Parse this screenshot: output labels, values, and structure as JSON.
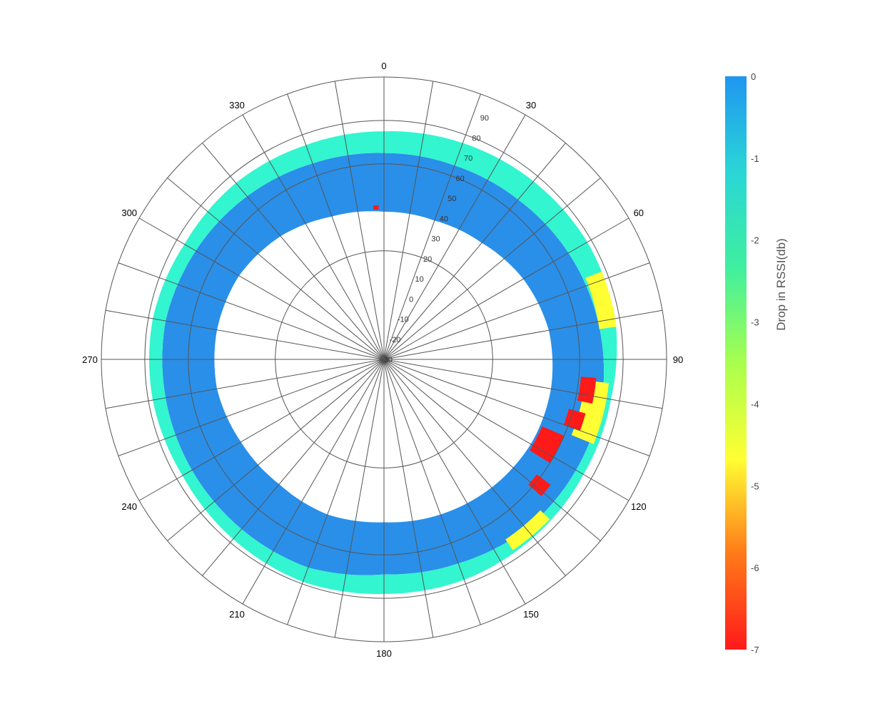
{
  "chart_data": {
    "type": "heatmap",
    "subtype": "polar",
    "title": "",
    "angular_axis": {
      "ticks": [
        0,
        30,
        60,
        90,
        120,
        150,
        180,
        210,
        240,
        270,
        300,
        330
      ],
      "tick_labels": [
        "0",
        "30",
        "60",
        "90",
        "120",
        "150",
        "180",
        "210",
        "240",
        "270",
        "300",
        "330"
      ],
      "spoke_step_deg": 10,
      "direction": "clockwise",
      "zero": "top"
    },
    "radial_axis": {
      "range": [
        -30,
        100
      ],
      "ticks": [
        -30,
        -20,
        -10,
        0,
        10,
        20,
        30,
        40,
        50,
        60,
        70,
        80,
        90
      ],
      "tick_labels": [
        "-30",
        "-20",
        "-10",
        "0",
        "10",
        "20",
        "30",
        "40",
        "50",
        "60",
        "70",
        "80",
        "90"
      ],
      "label_angle_deg": 22,
      "rings": [
        -30,
        20,
        60,
        80,
        100
      ]
    },
    "colorbar": {
      "title": "Drop in RSSI(db)",
      "range": [
        -7,
        0
      ],
      "ticks": [
        0,
        -1,
        -2,
        -3,
        -4,
        -5,
        -6,
        -7
      ],
      "tick_labels": [
        "0",
        "-1",
        "-2",
        "-3",
        "-4",
        "-5",
        "-6",
        "-7"
      ],
      "colorscale": [
        "#ff1a1a",
        "#ff7a1a",
        "#ffff33",
        "#a8ff4d",
        "#3fefa0",
        "#2ad6d6",
        "#1f96f0"
      ]
    },
    "series": [
      {
        "band": "inner_blue",
        "value_db": 0,
        "r_inner": [
          38,
          38,
          40,
          44,
          47,
          48,
          48,
          47,
          46,
          45,
          46,
          45,
          46,
          48,
          48,
          47,
          44,
          40,
          38
        ],
        "r_outer": [
          65,
          65,
          66,
          68,
          70,
          72,
          72,
          72,
          70,
          69,
          72,
          72,
          72,
          72,
          72,
          70,
          68,
          66,
          65
        ],
        "theta": [
          0,
          20,
          40,
          60,
          80,
          100,
          120,
          140,
          160,
          180,
          200,
          220,
          240,
          260,
          280,
          300,
          320,
          340,
          360
        ]
      },
      {
        "band": "outer_cyan",
        "value_db": -2,
        "r_inner": [
          65,
          65,
          66,
          68,
          70,
          72,
          72,
          72,
          70,
          69,
          72,
          72,
          72,
          72,
          72,
          70,
          68,
          66,
          65
        ],
        "r_outer": [
          75,
          76,
          77,
          78,
          78,
          76,
          76,
          77,
          78,
          78,
          79,
          78,
          77,
          78,
          78,
          76,
          76,
          75,
          75
        ],
        "theta": [
          0,
          20,
          40,
          60,
          80,
          100,
          120,
          140,
          160,
          180,
          200,
          220,
          240,
          260,
          280,
          300,
          320,
          340,
          360
        ]
      },
      {
        "band": "yellow_patches",
        "value_db": -5,
        "patches": [
          {
            "theta": [
              68,
              82
            ],
            "r": [
              70,
              78
            ]
          },
          {
            "theta": [
              96,
              112
            ],
            "r": [
              63,
              74
            ]
          },
          {
            "theta": [
              134,
              146
            ],
            "r": [
              70,
              76
            ]
          }
        ]
      },
      {
        "band": "red_patches",
        "value_db": -7,
        "patches": [
          {
            "theta": [
              95,
              102
            ],
            "r": [
              61,
              68
            ]
          },
          {
            "theta": [
              105,
              110
            ],
            "r": [
              58,
              66
            ]
          },
          {
            "theta": [
              113,
              122
            ],
            "r": [
              49,
              60
            ]
          },
          {
            "theta": [
              127,
              131
            ],
            "r": [
              58,
              66
            ]
          },
          {
            "theta": [
              356,
              358
            ],
            "r": [
              39,
              41
            ]
          }
        ]
      }
    ]
  }
}
